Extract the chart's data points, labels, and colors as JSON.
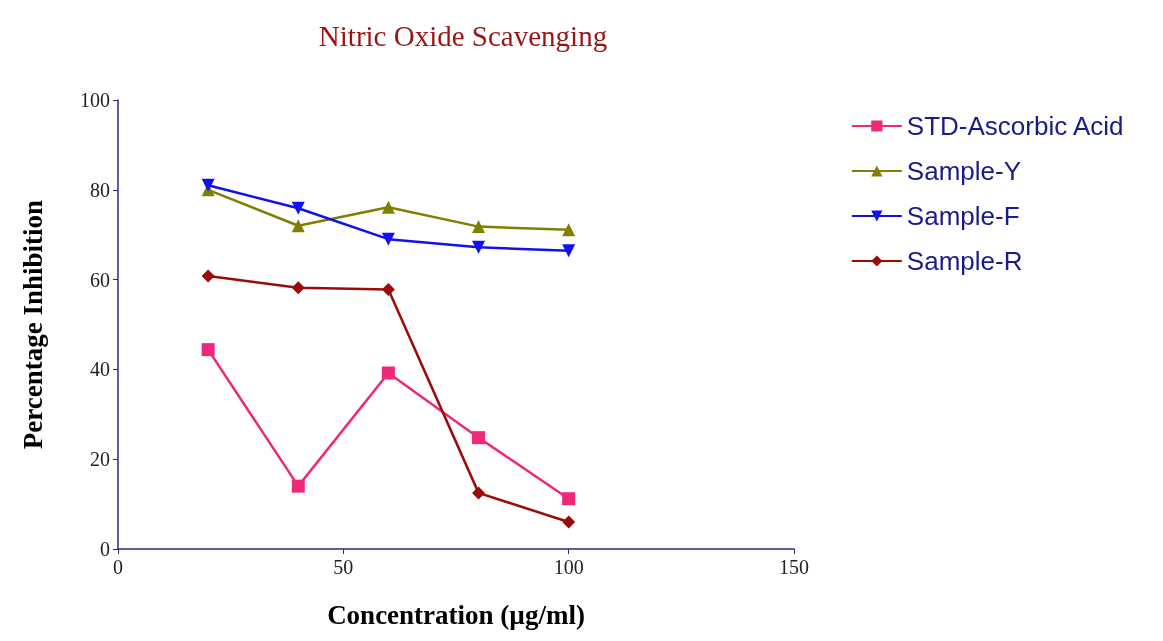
{
  "chart_data": {
    "type": "line",
    "title": "Nitric Oxide Scavenging",
    "xlabel": "Concentration (µg/ml)",
    "ylabel": "Percentage Inhibition",
    "x": [
      20,
      40,
      60,
      80,
      100
    ],
    "series": [
      {
        "name": "STD-Ascorbic Acid",
        "color": "#f0287a",
        "marker": "square",
        "values": [
          44.4,
          14.0,
          39.2,
          24.8,
          11.2
        ]
      },
      {
        "name": "Sample-Y",
        "color": "#808000",
        "marker": "triangle",
        "values": [
          80.0,
          72.0,
          76.1,
          71.8,
          71.1
        ]
      },
      {
        "name": "Sample-F",
        "color": "#1010f0",
        "marker": "triangle-down",
        "values": [
          81.0,
          75.9,
          69.0,
          67.2,
          66.4
        ]
      },
      {
        "name": "Sample-R",
        "color": "#9b0a0a",
        "marker": "diamond",
        "values": [
          60.8,
          58.2,
          57.8,
          12.5,
          6.0
        ]
      }
    ],
    "xlim": [
      0,
      150
    ],
    "xticks": [
      0,
      50,
      100,
      150
    ],
    "ylim": [
      0,
      100
    ],
    "yticks": [
      0,
      20,
      40,
      60,
      80,
      100
    ],
    "grid": false,
    "legend": "top right",
    "line_style": "solid"
  }
}
